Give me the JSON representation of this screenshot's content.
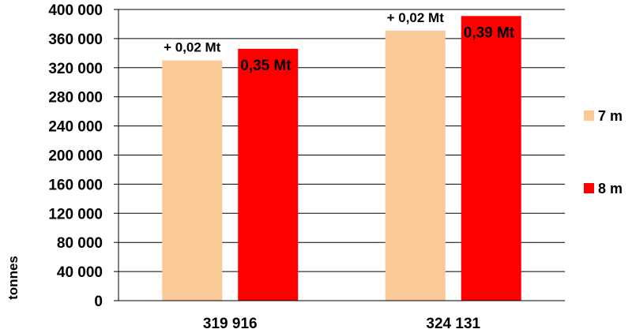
{
  "chart_data": {
    "type": "bar",
    "ylabel": "tonnes",
    "ylim": [
      0,
      400000
    ],
    "yticks": [
      0,
      40000,
      80000,
      120000,
      160000,
      200000,
      240000,
      280000,
      320000,
      360000,
      400000
    ],
    "ytick_labels": [
      "0",
      "40 000",
      "80 000",
      "120 000",
      "160 000",
      "200 000",
      "240 000",
      "280 000",
      "320 000",
      "360 000",
      "400 000"
    ],
    "categories": [
      "319 916",
      "324 131"
    ],
    "grid": true,
    "legend_position": "right",
    "series": [
      {
        "name": "7 m",
        "color": "#FBC898",
        "values": [
          330000,
          371000
        ],
        "labels": [
          "+ 0,02 Mt",
          "+ 0,02 Mt"
        ]
      },
      {
        "name": "8 m",
        "color": "#FF0000",
        "values": [
          346000,
          391000
        ],
        "labels": [
          "0,35 Mt",
          "0,39 Mt"
        ]
      }
    ]
  }
}
